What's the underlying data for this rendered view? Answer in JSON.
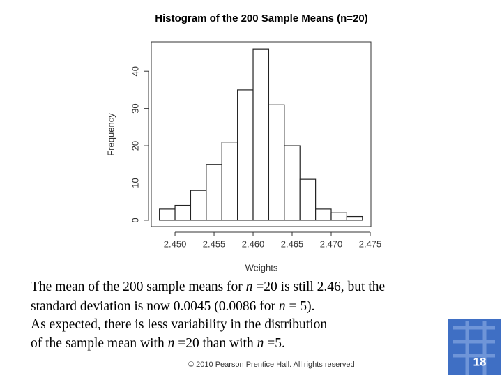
{
  "chart_data": {
    "type": "histogram",
    "title": "Histogram of the 200 Sample Means (n=20)",
    "xlabel": "Weights",
    "ylabel": "Frequency",
    "bins": [
      2.448,
      2.45,
      2.452,
      2.454,
      2.456,
      2.458,
      2.46,
      2.462,
      2.464,
      2.466,
      2.468,
      2.47,
      2.472,
      2.474
    ],
    "values": [
      3,
      4,
      8,
      15,
      21,
      35,
      46,
      31,
      20,
      11,
      3,
      2,
      1
    ],
    "color": "#ffffff",
    "xlim": [
      2.44696,
      2.47509
    ],
    "ylim": [
      -1.7,
      47.9
    ],
    "xticks": [
      {
        "value": 2.45,
        "label": "2.450"
      },
      {
        "value": 2.455,
        "label": "2.455"
      },
      {
        "value": 2.46,
        "label": "2.460"
      },
      {
        "value": 2.465,
        "label": "2.465"
      },
      {
        "value": 2.47,
        "label": "2.470"
      },
      {
        "value": 2.475,
        "label": "2.475"
      }
    ],
    "yticks": [
      0,
      10,
      20,
      30,
      40
    ]
  },
  "text": {
    "lines": [
      [
        "The mean of the 200 sample means for ",
        "n",
        " =20 is still 2.46, but the"
      ],
      [
        "standard deviation is now 0.0045  (0.0086 for ",
        "n",
        " = 5)."
      ],
      [
        "As expected, there is less variability in the distribution"
      ],
      [
        "of the sample mean with ",
        "n",
        " =20 than with ",
        "n",
        " =5."
      ]
    ]
  },
  "footer": {
    "copyright": "© 2010 Pearson Prentice Hall. All rights reserved",
    "page": "18"
  }
}
